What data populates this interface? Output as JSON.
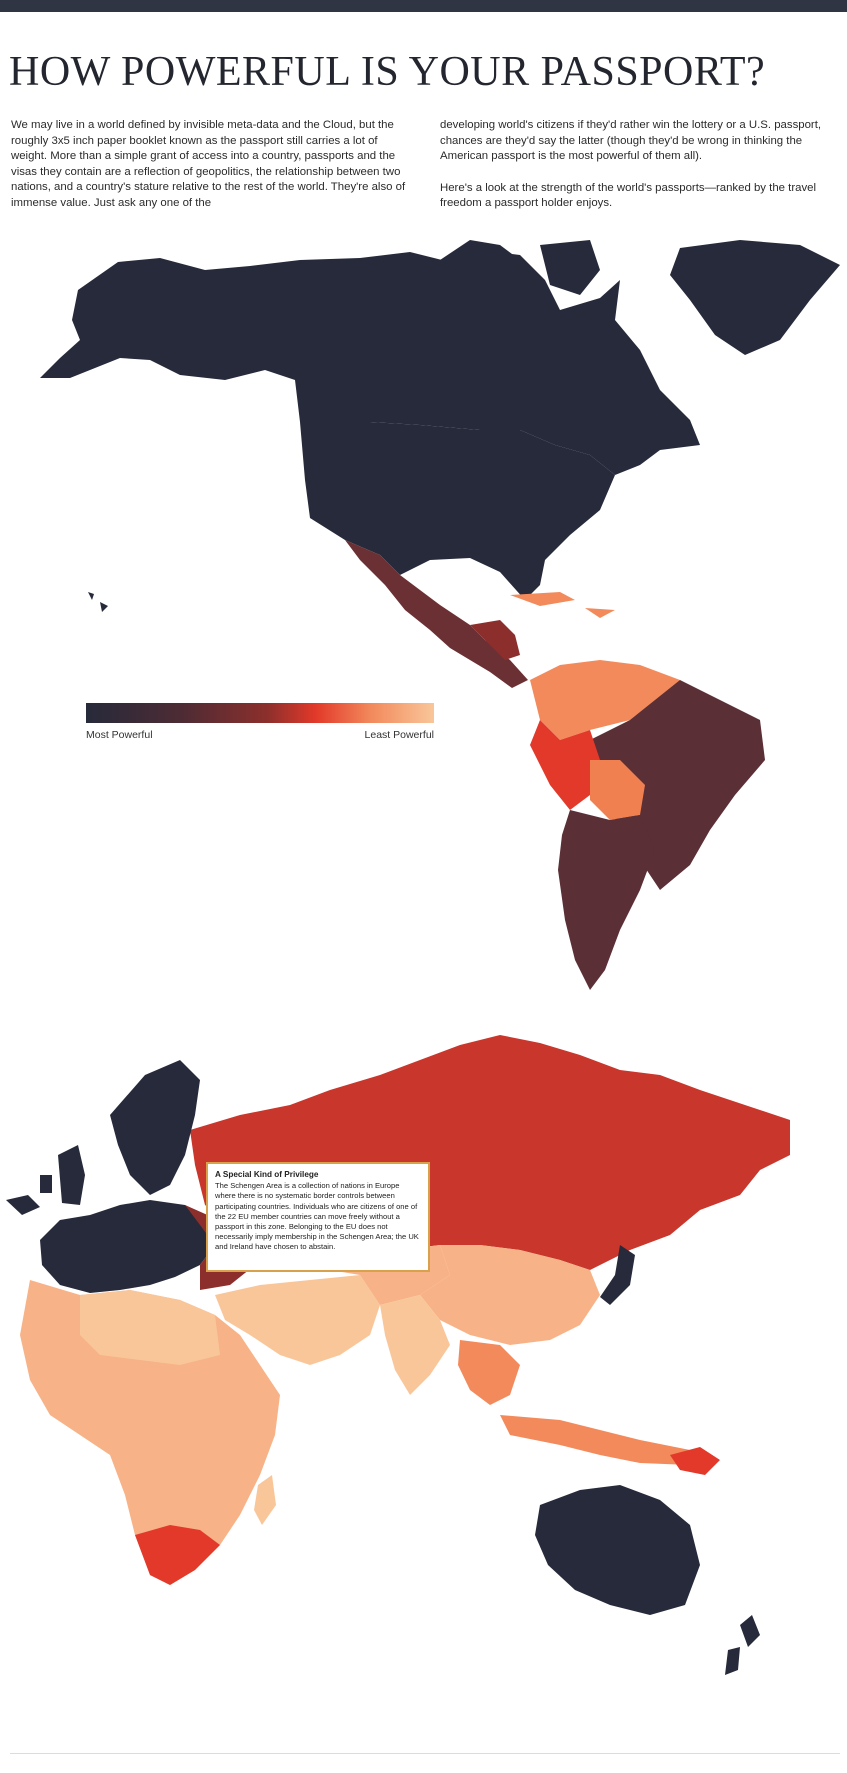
{
  "header": {
    "title": "HOW POWERFUL IS YOUR PASSPORT?"
  },
  "intro": {
    "left": "We may live in a world defined by invisible meta-data and the Cloud, but the roughly 3x5 inch paper booklet known as the passport still carries a lot of weight. More than a simple grant of access into a country, passports and the visas they contain are a reflection of geopolitics, the relationship between two nations, and a country's stature relative to the rest of the world. They're also of immense value. Just ask any one of the",
    "right_p1": "developing world's citizens if they'd rather win the lottery or a U.S. passport, chances are they'd say the latter (though they'd be wrong in thinking the American passport is the most powerful of them all).",
    "right_p2": "Here's a look at the strength of the world's passports—ranked by the travel freedom a passport holder enjoys."
  },
  "legend": {
    "min_label": "Most Powerful",
    "max_label": "Least Powerful",
    "colors": [
      "#262a3a",
      "#4e2b34",
      "#8c2f2c",
      "#e2392a",
      "#f28a5c",
      "#f9c69a"
    ]
  },
  "callout": {
    "title": "A Special Kind of Privilege",
    "body": "The Schengen Area is a collection of nations in Europe where there is no systematic border controls between participating countries. Individuals who are citizens of one of the 22 EU member countries can move freely without a passport in this zone. Belonging to the EU does not necessarily imply membership in the Schengen Area; the UK and Ireland have chosen to abstain."
  },
  "colors": {
    "most_powerful": "#262a3a",
    "high": "#5a2f36",
    "mid": "#c8362c",
    "low": "#f0804f",
    "least_powerful": "#f9c69a",
    "callout_border": "#d9a14b"
  }
}
